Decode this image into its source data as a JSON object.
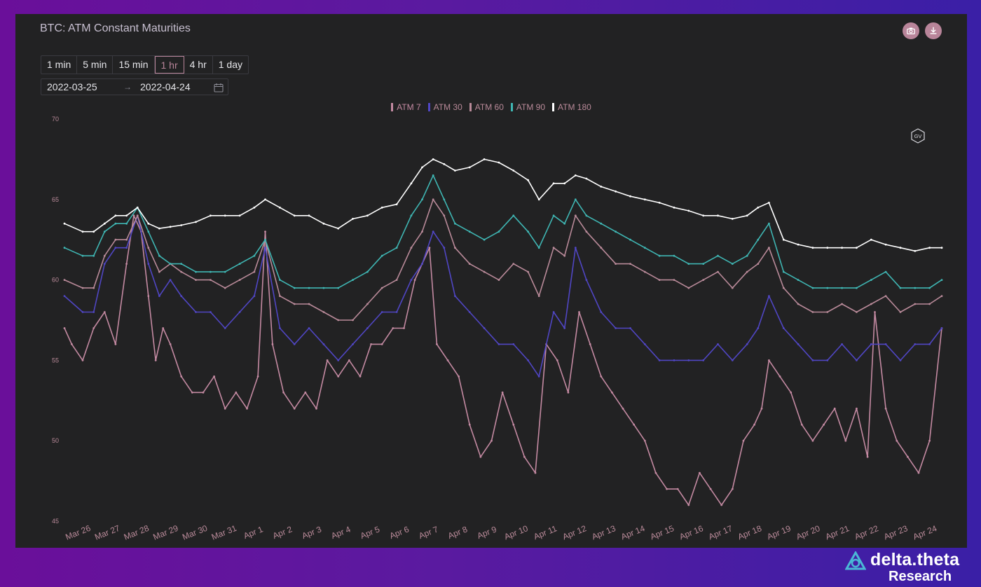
{
  "title": "BTC: ATM Constant Maturities",
  "toolbar": {
    "camera_icon": "camera-icon",
    "download_icon": "download-icon"
  },
  "ranges": [
    "1 min",
    "5 min",
    "15 min",
    "1 hr",
    "4 hr",
    "1 day"
  ],
  "active_range": "1 hr",
  "date_range": {
    "start": "2022-03-25",
    "end": "2022-04-24",
    "calendar_icon": "calendar-icon"
  },
  "badge_icon": "gv-hexagon-icon",
  "logo": {
    "name": "delta.theta",
    "sub": "Research",
    "icon": "delta-theta-logo-icon"
  },
  "colors": {
    "background": "#222223",
    "grid": "#2a2a2c",
    "atm7": "#c48aa2",
    "atm30": "#5046c4",
    "atm60": "#b98a99",
    "atm90": "#3fb6b3",
    "atm180": "#ffffff"
  },
  "chart_data": {
    "type": "line",
    "title": "",
    "xlabel": "",
    "ylabel": "",
    "ylim": [
      45,
      70
    ],
    "y_ticks": [
      45,
      50,
      55,
      60,
      65,
      70
    ],
    "x_ticks": [
      "Mar 26",
      "Mar 27",
      "Mar 28",
      "Mar 29",
      "Mar 30",
      "Mar 31",
      "Apr 1",
      "Apr 2",
      "Apr 3",
      "Apr 4",
      "Apr 5",
      "Apr 6",
      "Apr 7",
      "Apr 8",
      "Apr 9",
      "Apr 10",
      "Apr 11",
      "Apr 12",
      "Apr 13",
      "Apr 14",
      "Apr 15",
      "Apr 16",
      "Apr 17",
      "Apr 18",
      "Apr 19",
      "Apr 20",
      "Apr 21",
      "Apr 22",
      "Apr 23",
      "Apr 24"
    ],
    "x_start": "2022-03-25T12:00",
    "x_end": "2022-04-24T13:00",
    "legend_position": "top-center",
    "grid": false,
    "series": [
      {
        "name": "ATM 7",
        "color": "#c48aa2",
        "x": [
          "2022-03-25T12:00",
          "2022-03-25T18:00",
          "2022-03-26T03:00",
          "2022-03-26T12:00",
          "2022-03-26T21:00",
          "2022-03-27T06:00",
          "2022-03-27T15:00",
          "2022-03-27T21:00",
          "2022-03-28T03:00",
          "2022-03-28T09:00",
          "2022-03-28T15:00",
          "2022-03-28T21:00",
          "2022-03-29T03:00",
          "2022-03-29T12:00",
          "2022-03-29T21:00",
          "2022-03-30T06:00",
          "2022-03-30T15:00",
          "2022-03-31T00:00",
          "2022-03-31T09:00",
          "2022-03-31T18:00",
          "2022-04-01T03:00",
          "2022-04-01T09:00",
          "2022-04-01T15:00",
          "2022-04-02T00:00",
          "2022-04-02T09:00",
          "2022-04-02T18:00",
          "2022-04-03T03:00",
          "2022-04-03T12:00",
          "2022-04-03T21:00",
          "2022-04-04T06:00",
          "2022-04-04T15:00",
          "2022-04-05T00:00",
          "2022-04-05T09:00",
          "2022-04-05T18:00",
          "2022-04-06T03:00",
          "2022-04-06T12:00",
          "2022-04-06T18:00",
          "2022-04-07T00:00",
          "2022-04-07T06:00",
          "2022-04-07T15:00",
          "2022-04-08T00:00",
          "2022-04-08T09:00",
          "2022-04-08T18:00",
          "2022-04-09T03:00",
          "2022-04-09T12:00",
          "2022-04-09T21:00",
          "2022-04-10T06:00",
          "2022-04-10T15:00",
          "2022-04-11T00:00",
          "2022-04-11T09:00",
          "2022-04-11T18:00",
          "2022-04-12T03:00",
          "2022-04-12T12:00",
          "2022-04-12T21:00",
          "2022-04-13T06:00",
          "2022-04-13T15:00",
          "2022-04-14T00:00",
          "2022-04-14T09:00",
          "2022-04-14T18:00",
          "2022-04-15T03:00",
          "2022-04-15T12:00",
          "2022-04-15T21:00",
          "2022-04-16T06:00",
          "2022-04-16T15:00",
          "2022-04-17T00:00",
          "2022-04-17T09:00",
          "2022-04-17T18:00",
          "2022-04-18T03:00",
          "2022-04-18T09:00",
          "2022-04-18T15:00",
          "2022-04-19T00:00",
          "2022-04-19T09:00",
          "2022-04-19T18:00",
          "2022-04-20T03:00",
          "2022-04-20T12:00",
          "2022-04-20T21:00",
          "2022-04-21T06:00",
          "2022-04-21T15:00",
          "2022-04-22T00:00",
          "2022-04-22T06:00",
          "2022-04-22T15:00",
          "2022-04-23T00:00",
          "2022-04-23T09:00",
          "2022-04-23T18:00",
          "2022-04-24T03:00",
          "2022-04-24T13:00"
        ],
        "values": [
          57,
          56,
          55,
          57,
          58,
          56,
          61,
          64,
          63,
          59,
          55,
          57,
          56,
          54,
          53,
          53,
          54,
          52,
          53,
          52,
          54,
          63,
          56,
          53,
          52,
          53,
          52,
          55,
          54,
          55,
          54,
          56,
          56,
          57,
          57,
          60,
          61,
          62,
          56,
          55,
          54,
          51,
          49,
          50,
          53,
          51,
          49,
          48,
          56,
          55,
          53,
          58,
          56,
          54,
          53,
          52,
          51,
          50,
          48,
          47,
          47,
          46,
          48,
          47,
          46,
          47,
          50,
          51,
          52,
          55,
          54,
          53,
          51,
          50,
          51,
          52,
          50,
          52,
          49,
          58,
          52,
          50,
          49,
          48,
          50,
          57
        ]
      },
      {
        "name": "ATM 30",
        "color": "#5046c4",
        "x": [
          "2022-03-25T12:00",
          "2022-03-26T03:00",
          "2022-03-26T12:00",
          "2022-03-26T21:00",
          "2022-03-27T06:00",
          "2022-03-27T15:00",
          "2022-03-28T00:00",
          "2022-03-28T09:00",
          "2022-03-28T18:00",
          "2022-03-29T03:00",
          "2022-03-29T12:00",
          "2022-03-30T00:00",
          "2022-03-30T12:00",
          "2022-03-31T00:00",
          "2022-03-31T12:00",
          "2022-04-01T00:00",
          "2022-04-01T09:00",
          "2022-04-01T21:00",
          "2022-04-02T09:00",
          "2022-04-02T21:00",
          "2022-04-03T09:00",
          "2022-04-03T21:00",
          "2022-04-04T09:00",
          "2022-04-04T21:00",
          "2022-04-05T09:00",
          "2022-04-05T21:00",
          "2022-04-06T09:00",
          "2022-04-06T18:00",
          "2022-04-07T03:00",
          "2022-04-07T12:00",
          "2022-04-07T21:00",
          "2022-04-08T09:00",
          "2022-04-08T21:00",
          "2022-04-09T09:00",
          "2022-04-09T21:00",
          "2022-04-10T09:00",
          "2022-04-10T18:00",
          "2022-04-11T06:00",
          "2022-04-11T15:00",
          "2022-04-12T00:00",
          "2022-04-12T09:00",
          "2022-04-12T21:00",
          "2022-04-13T09:00",
          "2022-04-13T21:00",
          "2022-04-14T09:00",
          "2022-04-14T21:00",
          "2022-04-15T09:00",
          "2022-04-15T21:00",
          "2022-04-16T09:00",
          "2022-04-16T21:00",
          "2022-04-17T09:00",
          "2022-04-17T21:00",
          "2022-04-18T06:00",
          "2022-04-18T15:00",
          "2022-04-19T03:00",
          "2022-04-19T15:00",
          "2022-04-20T03:00",
          "2022-04-20T15:00",
          "2022-04-21T03:00",
          "2022-04-21T15:00",
          "2022-04-22T03:00",
          "2022-04-22T15:00",
          "2022-04-23T03:00",
          "2022-04-23T15:00",
          "2022-04-24T03:00",
          "2022-04-24T13:00"
        ],
        "values": [
          59,
          58,
          58,
          61,
          62,
          62,
          64,
          61,
          59,
          60,
          59,
          58,
          58,
          57,
          58,
          59,
          62,
          57,
          56,
          57,
          56,
          55,
          56,
          57,
          58,
          58,
          60,
          61,
          63,
          62,
          59,
          58,
          57,
          56,
          56,
          55,
          54,
          58,
          57,
          62,
          60,
          58,
          57,
          57,
          56,
          55,
          55,
          55,
          55,
          56,
          55,
          56,
          57,
          59,
          57,
          56,
          55,
          55,
          56,
          55,
          56,
          56,
          55,
          56,
          56,
          57
        ]
      },
      {
        "name": "ATM 60",
        "color": "#b98a99",
        "x": [
          "2022-03-25T12:00",
          "2022-03-26T03:00",
          "2022-03-26T12:00",
          "2022-03-26T21:00",
          "2022-03-27T06:00",
          "2022-03-27T15:00",
          "2022-03-28T00:00",
          "2022-03-28T09:00",
          "2022-03-28T18:00",
          "2022-03-29T03:00",
          "2022-03-29T12:00",
          "2022-03-30T00:00",
          "2022-03-30T12:00",
          "2022-03-31T00:00",
          "2022-03-31T12:00",
          "2022-04-01T00:00",
          "2022-04-01T09:00",
          "2022-04-01T21:00",
          "2022-04-02T09:00",
          "2022-04-02T21:00",
          "2022-04-03T09:00",
          "2022-04-03T21:00",
          "2022-04-04T09:00",
          "2022-04-04T21:00",
          "2022-04-05T09:00",
          "2022-04-05T21:00",
          "2022-04-06T09:00",
          "2022-04-06T18:00",
          "2022-04-07T03:00",
          "2022-04-07T12:00",
          "2022-04-07T21:00",
          "2022-04-08T09:00",
          "2022-04-08T21:00",
          "2022-04-09T09:00",
          "2022-04-09T21:00",
          "2022-04-10T09:00",
          "2022-04-10T18:00",
          "2022-04-11T06:00",
          "2022-04-11T15:00",
          "2022-04-12T00:00",
          "2022-04-12T09:00",
          "2022-04-12T21:00",
          "2022-04-13T09:00",
          "2022-04-13T21:00",
          "2022-04-14T09:00",
          "2022-04-14T21:00",
          "2022-04-15T09:00",
          "2022-04-15T21:00",
          "2022-04-16T09:00",
          "2022-04-16T21:00",
          "2022-04-17T09:00",
          "2022-04-17T21:00",
          "2022-04-18T06:00",
          "2022-04-18T15:00",
          "2022-04-19T03:00",
          "2022-04-19T15:00",
          "2022-04-20T03:00",
          "2022-04-20T15:00",
          "2022-04-21T03:00",
          "2022-04-21T15:00",
          "2022-04-22T03:00",
          "2022-04-22T15:00",
          "2022-04-23T03:00",
          "2022-04-23T15:00",
          "2022-04-24T03:00",
          "2022-04-24T13:00"
        ],
        "values": [
          60,
          59.5,
          59.5,
          61.5,
          62.5,
          62.5,
          64,
          62,
          60.5,
          61,
          60.5,
          60,
          60,
          59.5,
          60,
          60.5,
          62.5,
          59,
          58.5,
          58.5,
          58,
          57.5,
          57.5,
          58.5,
          59.5,
          60,
          62,
          63,
          65,
          64,
          62,
          61,
          60.5,
          60,
          61,
          60.5,
          59,
          62,
          61.5,
          64,
          63,
          62,
          61,
          61,
          60.5,
          60,
          60,
          59.5,
          60,
          60.5,
          59.5,
          60.5,
          61,
          62,
          59.5,
          58.5,
          58,
          58,
          58.5,
          58,
          58.5,
          59,
          58,
          58.5,
          58.5,
          59
        ]
      },
      {
        "name": "ATM 90",
        "color": "#3fb6b3",
        "x": [
          "2022-03-25T12:00",
          "2022-03-26T03:00",
          "2022-03-26T12:00",
          "2022-03-26T21:00",
          "2022-03-27T06:00",
          "2022-03-27T15:00",
          "2022-03-28T00:00",
          "2022-03-28T09:00",
          "2022-03-28T18:00",
          "2022-03-29T03:00",
          "2022-03-29T12:00",
          "2022-03-30T00:00",
          "2022-03-30T12:00",
          "2022-03-31T00:00",
          "2022-03-31T12:00",
          "2022-04-01T00:00",
          "2022-04-01T09:00",
          "2022-04-01T21:00",
          "2022-04-02T09:00",
          "2022-04-02T21:00",
          "2022-04-03T09:00",
          "2022-04-03T21:00",
          "2022-04-04T09:00",
          "2022-04-04T21:00",
          "2022-04-05T09:00",
          "2022-04-05T21:00",
          "2022-04-06T09:00",
          "2022-04-06T18:00",
          "2022-04-07T03:00",
          "2022-04-07T12:00",
          "2022-04-07T21:00",
          "2022-04-08T09:00",
          "2022-04-08T21:00",
          "2022-04-09T09:00",
          "2022-04-09T21:00",
          "2022-04-10T09:00",
          "2022-04-10T18:00",
          "2022-04-11T06:00",
          "2022-04-11T15:00",
          "2022-04-12T00:00",
          "2022-04-12T09:00",
          "2022-04-12T21:00",
          "2022-04-13T09:00",
          "2022-04-13T21:00",
          "2022-04-14T09:00",
          "2022-04-14T21:00",
          "2022-04-15T09:00",
          "2022-04-15T21:00",
          "2022-04-16T09:00",
          "2022-04-16T21:00",
          "2022-04-17T09:00",
          "2022-04-17T21:00",
          "2022-04-18T06:00",
          "2022-04-18T15:00",
          "2022-04-19T03:00",
          "2022-04-19T15:00",
          "2022-04-20T03:00",
          "2022-04-20T15:00",
          "2022-04-21T03:00",
          "2022-04-21T15:00",
          "2022-04-22T03:00",
          "2022-04-22T15:00",
          "2022-04-23T03:00",
          "2022-04-23T15:00",
          "2022-04-24T03:00",
          "2022-04-24T13:00"
        ],
        "values": [
          62,
          61.5,
          61.5,
          63,
          63.5,
          63.5,
          64.5,
          63,
          61.5,
          61,
          61,
          60.5,
          60.5,
          60.5,
          61,
          61.5,
          62.5,
          60,
          59.5,
          59.5,
          59.5,
          59.5,
          60,
          60.5,
          61.5,
          62,
          64,
          65,
          66.5,
          65,
          63.5,
          63,
          62.5,
          63,
          64,
          63,
          62,
          64,
          63.5,
          65,
          64,
          63.5,
          63,
          62.5,
          62,
          61.5,
          61.5,
          61,
          61,
          61.5,
          61,
          61.5,
          62.5,
          63.5,
          60.5,
          60,
          59.5,
          59.5,
          59.5,
          59.5,
          60,
          60.5,
          59.5,
          59.5,
          59.5,
          60
        ]
      },
      {
        "name": "ATM 180",
        "color": "#ffffff",
        "x": [
          "2022-03-25T12:00",
          "2022-03-26T03:00",
          "2022-03-26T12:00",
          "2022-03-26T21:00",
          "2022-03-27T06:00",
          "2022-03-27T15:00",
          "2022-03-28T00:00",
          "2022-03-28T09:00",
          "2022-03-28T18:00",
          "2022-03-29T03:00",
          "2022-03-29T12:00",
          "2022-03-30T00:00",
          "2022-03-30T12:00",
          "2022-03-31T00:00",
          "2022-03-31T12:00",
          "2022-04-01T00:00",
          "2022-04-01T09:00",
          "2022-04-01T21:00",
          "2022-04-02T09:00",
          "2022-04-02T21:00",
          "2022-04-03T09:00",
          "2022-04-03T21:00",
          "2022-04-04T09:00",
          "2022-04-04T21:00",
          "2022-04-05T09:00",
          "2022-04-05T21:00",
          "2022-04-06T09:00",
          "2022-04-06T18:00",
          "2022-04-07T03:00",
          "2022-04-07T12:00",
          "2022-04-07T21:00",
          "2022-04-08T09:00",
          "2022-04-08T21:00",
          "2022-04-09T09:00",
          "2022-04-09T21:00",
          "2022-04-10T09:00",
          "2022-04-10T18:00",
          "2022-04-11T06:00",
          "2022-04-11T15:00",
          "2022-04-12T00:00",
          "2022-04-12T09:00",
          "2022-04-12T21:00",
          "2022-04-13T09:00",
          "2022-04-13T21:00",
          "2022-04-14T09:00",
          "2022-04-14T21:00",
          "2022-04-15T09:00",
          "2022-04-15T21:00",
          "2022-04-16T09:00",
          "2022-04-16T21:00",
          "2022-04-17T09:00",
          "2022-04-17T21:00",
          "2022-04-18T06:00",
          "2022-04-18T15:00",
          "2022-04-19T03:00",
          "2022-04-19T15:00",
          "2022-04-20T03:00",
          "2022-04-20T15:00",
          "2022-04-21T03:00",
          "2022-04-21T15:00",
          "2022-04-22T03:00",
          "2022-04-22T15:00",
          "2022-04-23T03:00",
          "2022-04-23T15:00",
          "2022-04-24T03:00",
          "2022-04-24T13:00"
        ],
        "values": [
          63.5,
          63,
          63,
          63.5,
          64,
          64,
          64.5,
          63.5,
          63.2,
          63.3,
          63.4,
          63.6,
          64,
          64,
          64,
          64.5,
          65,
          64.5,
          64,
          64,
          63.5,
          63.2,
          63.8,
          64,
          64.5,
          64.7,
          66,
          67,
          67.5,
          67.2,
          66.8,
          67,
          67.5,
          67.3,
          66.8,
          66.2,
          65,
          66,
          66,
          66.5,
          66.3,
          65.8,
          65.5,
          65.2,
          65,
          64.8,
          64.5,
          64.3,
          64,
          64,
          63.8,
          64,
          64.5,
          64.8,
          62.5,
          62.2,
          62,
          62,
          62,
          62,
          62.5,
          62.2,
          62,
          61.8,
          62,
          62
        ]
      }
    ]
  }
}
